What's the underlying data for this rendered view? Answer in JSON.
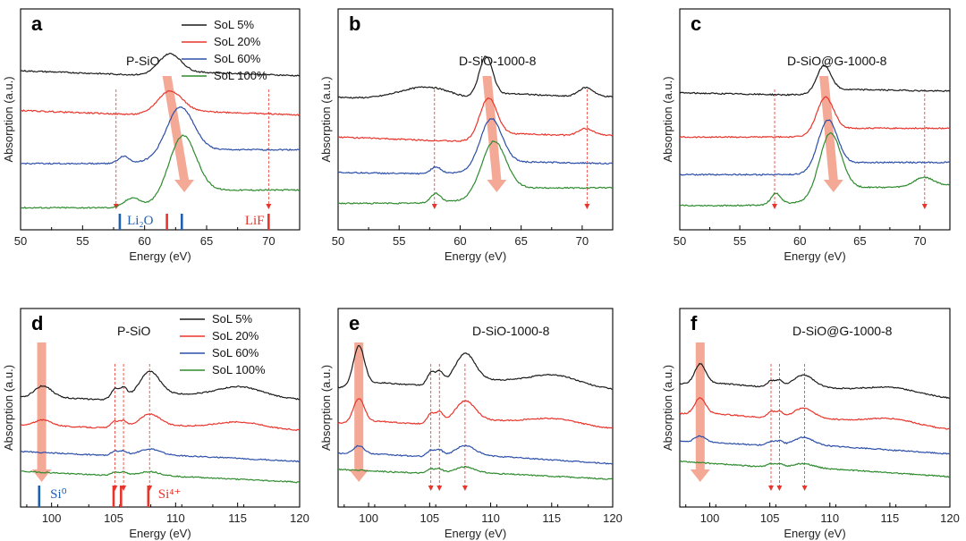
{
  "chart_data": [
    {
      "panel": "a",
      "title": "P-SiO",
      "type": "line",
      "xlabel": "Energy (eV)",
      "ylabel": "Absorption (a.u.)",
      "xlim": [
        50,
        72.5
      ],
      "ylim": [
        0,
        1
      ],
      "xticks": [
        50,
        55,
        60,
        65,
        70
      ],
      "series": [
        {
          "name": "SoL 5%",
          "color": "#1a1a1a",
          "baseline": 0.72,
          "peaks": [
            {
              "x": 62.0,
              "h": 0.09,
              "w": 0.9
            }
          ],
          "slope": -0.002
        },
        {
          "name": "SoL 20%",
          "color": "#e8352b",
          "baseline": 0.54,
          "peaks": [
            {
              "x": 62.0,
              "h": 0.1,
              "w": 1.0
            }
          ],
          "slope": -0.002
        },
        {
          "name": "SoL 60%",
          "color": "#2c4ea8",
          "baseline": 0.3,
          "peaks": [
            {
              "x": 62.8,
              "h": 0.22,
              "w": 1.1
            },
            {
              "x": 58.3,
              "h": 0.03,
              "w": 0.4
            }
          ],
          "slope": 0.0
        },
        {
          "name": "SoL 100%",
          "color": "#2e8b2e",
          "baseline": 0.1,
          "peaks": [
            {
              "x": 63.0,
              "h": 0.28,
              "w": 1.1
            },
            {
              "x": 59.0,
              "h": 0.04,
              "w": 0.6
            }
          ],
          "slope": 0.0
        }
      ],
      "arrow": {
        "x_start": 61.8,
        "x_end": 63.2
      },
      "guides": [
        57.7,
        70.0
      ],
      "references": [
        {
          "label": "Li₂O",
          "color": "#1f5fb0",
          "positions": [
            58.0,
            63.0
          ]
        },
        {
          "label": "LiF",
          "color": "#e8352b",
          "positions": [
            61.8,
            70.0
          ]
        }
      ],
      "legend": [
        "SoL 5%",
        "SoL 20%",
        "SoL 60%",
        "SoL 100%"
      ]
    },
    {
      "panel": "b",
      "title": "D-SiO-1000-8",
      "type": "line",
      "xlabel": "Energy (eV)",
      "ylabel": "Absorption (a.u.)",
      "xlim": [
        50,
        72.5
      ],
      "ylim": [
        0,
        1
      ],
      "xticks": [
        50,
        55,
        60,
        65,
        70
      ],
      "series": [
        {
          "name": "SoL 5%",
          "color": "#1a1a1a",
          "baseline": 0.6,
          "peaks": [
            {
              "x": 62.1,
              "h": 0.18,
              "w": 0.55
            },
            {
              "x": 57.0,
              "h": 0.06,
              "w": 2.2
            },
            {
              "x": 70.3,
              "h": 0.04,
              "w": 0.6
            }
          ],
          "slope": -0.003
        },
        {
          "name": "SoL 20%",
          "color": "#e8352b",
          "baseline": 0.42,
          "peaks": [
            {
              "x": 62.3,
              "h": 0.18,
              "w": 0.7
            },
            {
              "x": 70.3,
              "h": 0.03,
              "w": 0.6
            }
          ],
          "slope": -0.002
        },
        {
          "name": "SoL 60%",
          "color": "#2c4ea8",
          "baseline": 0.26,
          "peaks": [
            {
              "x": 62.5,
              "h": 0.22,
              "w": 0.9
            },
            {
              "x": 58.0,
              "h": 0.03,
              "w": 0.4
            }
          ],
          "slope": -0.001
        },
        {
          "name": "SoL 100%",
          "color": "#2e8b2e",
          "baseline": 0.12,
          "peaks": [
            {
              "x": 62.7,
              "h": 0.24,
              "w": 1.0
            },
            {
              "x": 58.0,
              "h": 0.04,
              "w": 0.4
            }
          ],
          "slope": 0.0
        }
      ],
      "arrow": {
        "x_start": 62.2,
        "x_end": 63.0
      },
      "guides": [
        57.9,
        70.4
      ]
    },
    {
      "panel": "c",
      "title": "D-SiO@G-1000-8",
      "type": "line",
      "xlabel": "Energy (eV)",
      "ylabel": "Absorption (a.u.)",
      "xlim": [
        50,
        72.5
      ],
      "ylim": [
        0,
        1
      ],
      "xticks": [
        50,
        55,
        60,
        65,
        70
      ],
      "series": [
        {
          "name": "SoL 5%",
          "color": "#1a1a1a",
          "baseline": 0.62,
          "peaks": [
            {
              "x": 62.0,
              "h": 0.12,
              "w": 0.6
            }
          ],
          "slope": -0.001
        },
        {
          "name": "SoL 20%",
          "color": "#e8352b",
          "baseline": 0.42,
          "peaks": [
            {
              "x": 62.1,
              "h": 0.16,
              "w": 0.7
            }
          ],
          "slope": 0.0
        },
        {
          "name": "SoL 60%",
          "color": "#2c4ea8",
          "baseline": 0.25,
          "peaks": [
            {
              "x": 62.3,
              "h": 0.22,
              "w": 0.8
            }
          ],
          "slope": 0.0
        },
        {
          "name": "SoL 100%",
          "color": "#2e8b2e",
          "baseline": 0.11,
          "peaks": [
            {
              "x": 62.5,
              "h": 0.28,
              "w": 0.9
            },
            {
              "x": 58.0,
              "h": 0.05,
              "w": 0.4
            },
            {
              "x": 70.3,
              "h": 0.04,
              "w": 0.8
            }
          ],
          "slope": 0.0
        }
      ],
      "arrow": {
        "x_start": 62.0,
        "x_end": 62.8
      },
      "guides": [
        57.9,
        70.4
      ]
    },
    {
      "panel": "d",
      "title": "P-SiO",
      "type": "line",
      "xlabel": "Energy (eV)",
      "ylabel": "Absorption (a.u.)",
      "xlim": [
        97.5,
        120
      ],
      "ylim": [
        0,
        1
      ],
      "xticks": [
        100,
        105,
        110,
        115,
        120
      ],
      "series": [
        {
          "name": "SoL 5%",
          "color": "#1a1a1a",
          "baseline": 0.55,
          "peaks": [
            {
              "x": 99.3,
              "h": 0.06,
              "w": 0.7
            },
            {
              "x": 105.1,
              "h": 0.05,
              "w": 0.3
            },
            {
              "x": 105.8,
              "h": 0.05,
              "w": 0.3
            },
            {
              "x": 107.9,
              "h": 0.12,
              "w": 0.8
            },
            {
              "x": 115.0,
              "h": 0.05,
              "w": 1.8
            }
          ],
          "slope": -0.004
        },
        {
          "name": "SoL 20%",
          "color": "#e8352b",
          "baseline": 0.41,
          "peaks": [
            {
              "x": 99.3,
              "h": 0.03,
              "w": 0.7
            },
            {
              "x": 105.1,
              "h": 0.03,
              "w": 0.3
            },
            {
              "x": 105.8,
              "h": 0.03,
              "w": 0.3
            },
            {
              "x": 107.9,
              "h": 0.06,
              "w": 0.8
            },
            {
              "x": 115.0,
              "h": 0.03,
              "w": 1.8
            }
          ],
          "slope": -0.003
        },
        {
          "name": "SoL 60%",
          "color": "#2c4ea8",
          "baseline": 0.28,
          "peaks": [
            {
              "x": 105.1,
              "h": 0.02,
              "w": 0.3
            },
            {
              "x": 105.8,
              "h": 0.02,
              "w": 0.3
            },
            {
              "x": 107.9,
              "h": 0.03,
              "w": 0.8
            }
          ],
          "slope": -0.003
        },
        {
          "name": "SoL 100%",
          "color": "#2e8b2e",
          "baseline": 0.18,
          "peaks": [
            {
              "x": 105.1,
              "h": 0.015,
              "w": 0.3
            },
            {
              "x": 105.8,
              "h": 0.015,
              "w": 0.3
            },
            {
              "x": 107.9,
              "h": 0.02,
              "w": 0.8
            }
          ],
          "slope": -0.003
        }
      ],
      "arrow": {
        "x_start": 99.2,
        "x_end": 99.2
      },
      "guides": [
        105.1,
        105.8,
        107.9
      ],
      "references": [
        {
          "label": "Si⁰",
          "color": "#1f5fb0",
          "positions": [
            99.0
          ]
        },
        {
          "label": "Si⁴⁺",
          "color": "#e8352b",
          "positions": [
            105.0,
            105.6,
            107.8
          ]
        }
      ],
      "legend": [
        "SoL 5%",
        "SoL 20%",
        "SoL 60%",
        "SoL 100%"
      ]
    },
    {
      "panel": "e",
      "title": "D-SiO-1000-8",
      "type": "line",
      "xlabel": "Energy (eV)",
      "ylabel": "Absorption (a.u.)",
      "xlim": [
        97.5,
        120
      ],
      "ylim": [
        0,
        1
      ],
      "xticks": [
        100,
        105,
        110,
        115,
        120
      ],
      "series": [
        {
          "name": "SoL 5%",
          "color": "#1a1a1a",
          "baseline": 0.6,
          "peaks": [
            {
              "x": 99.2,
              "h": 0.2,
              "w": 0.45
            },
            {
              "x": 105.1,
              "h": 0.06,
              "w": 0.3
            },
            {
              "x": 105.8,
              "h": 0.06,
              "w": 0.3
            },
            {
              "x": 107.9,
              "h": 0.14,
              "w": 0.8
            },
            {
              "x": 115.0,
              "h": 0.05,
              "w": 2.0
            }
          ],
          "slope": -0.006
        },
        {
          "name": "SoL 20%",
          "color": "#e8352b",
          "baseline": 0.42,
          "peaks": [
            {
              "x": 99.2,
              "h": 0.12,
              "w": 0.45
            },
            {
              "x": 105.1,
              "h": 0.05,
              "w": 0.3
            },
            {
              "x": 105.8,
              "h": 0.05,
              "w": 0.3
            },
            {
              "x": 107.9,
              "h": 0.1,
              "w": 0.8
            },
            {
              "x": 115.0,
              "h": 0.03,
              "w": 2.0
            }
          ],
          "slope": -0.005
        },
        {
          "name": "SoL 60%",
          "color": "#2c4ea8",
          "baseline": 0.27,
          "peaks": [
            {
              "x": 99.2,
              "h": 0.04,
              "w": 0.45
            },
            {
              "x": 105.1,
              "h": 0.03,
              "w": 0.3
            },
            {
              "x": 105.8,
              "h": 0.03,
              "w": 0.3
            },
            {
              "x": 107.9,
              "h": 0.05,
              "w": 0.8
            }
          ],
          "slope": -0.004
        },
        {
          "name": "SoL 100%",
          "color": "#2e8b2e",
          "baseline": 0.19,
          "peaks": [
            {
              "x": 105.1,
              "h": 0.02,
              "w": 0.3
            },
            {
              "x": 105.8,
              "h": 0.02,
              "w": 0.3
            },
            {
              "x": 107.9,
              "h": 0.03,
              "w": 0.8
            }
          ],
          "slope": -0.003
        }
      ],
      "arrow": {
        "x_start": 99.2,
        "x_end": 99.2
      },
      "guides": [
        105.1,
        105.8,
        107.9
      ]
    },
    {
      "panel": "f",
      "title": "D-SiO@G-1000-8",
      "type": "line",
      "xlabel": "Energy (eV)",
      "ylabel": "Absorption (a.u.)",
      "xlim": [
        97.5,
        120
      ],
      "ylim": [
        0,
        1
      ],
      "xticks": [
        100,
        105,
        110,
        115,
        120
      ],
      "series": [
        {
          "name": "SoL 5%",
          "color": "#1a1a1a",
          "baseline": 0.62,
          "peaks": [
            {
              "x": 99.2,
              "h": 0.1,
              "w": 0.45
            },
            {
              "x": 105.1,
              "h": 0.03,
              "w": 0.3
            },
            {
              "x": 105.8,
              "h": 0.03,
              "w": 0.3
            },
            {
              "x": 107.8,
              "h": 0.06,
              "w": 0.8
            },
            {
              "x": 115.0,
              "h": 0.03,
              "w": 2.0
            }
          ],
          "slope": -0.006
        },
        {
          "name": "SoL 20%",
          "color": "#e8352b",
          "baseline": 0.47,
          "peaks": [
            {
              "x": 99.2,
              "h": 0.08,
              "w": 0.45
            },
            {
              "x": 105.1,
              "h": 0.03,
              "w": 0.3
            },
            {
              "x": 105.8,
              "h": 0.03,
              "w": 0.3
            },
            {
              "x": 107.8,
              "h": 0.05,
              "w": 0.8
            },
            {
              "x": 115.0,
              "h": 0.03,
              "w": 2.0
            }
          ],
          "slope": -0.006
        },
        {
          "name": "SoL 60%",
          "color": "#2c4ea8",
          "baseline": 0.33,
          "peaks": [
            {
              "x": 99.2,
              "h": 0.03,
              "w": 0.45
            },
            {
              "x": 105.1,
              "h": 0.02,
              "w": 0.3
            },
            {
              "x": 105.8,
              "h": 0.02,
              "w": 0.3
            },
            {
              "x": 107.8,
              "h": 0.04,
              "w": 0.8
            }
          ],
          "slope": -0.004
        },
        {
          "name": "SoL 100%",
          "color": "#2e8b2e",
          "baseline": 0.23,
          "peaks": [
            {
              "x": 105.1,
              "h": 0.015,
              "w": 0.3
            },
            {
              "x": 105.8,
              "h": 0.015,
              "w": 0.3
            },
            {
              "x": 107.8,
              "h": 0.02,
              "w": 0.8
            }
          ],
          "slope": -0.004
        }
      ],
      "arrow": {
        "x_start": 99.2,
        "x_end": 99.2
      },
      "guides": [
        105.1,
        105.8,
        107.9
      ]
    }
  ]
}
